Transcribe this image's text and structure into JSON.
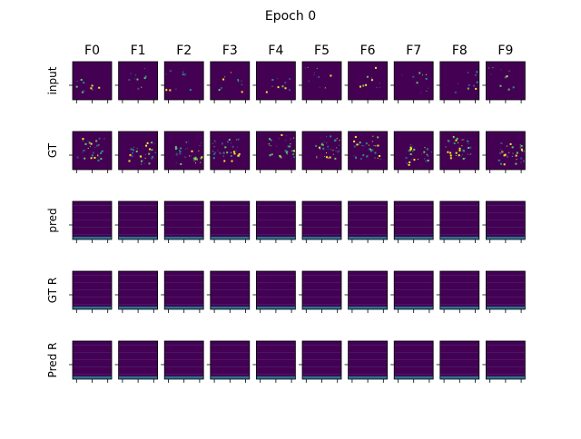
{
  "chart_data": {
    "type": "heatmap",
    "title": "Epoch 0",
    "columns": [
      "F0",
      "F1",
      "F2",
      "F3",
      "F4",
      "F5",
      "F6",
      "F7",
      "F8",
      "F9"
    ],
    "rows": [
      "input",
      "GT",
      "pred",
      "GT R",
      "Pred R"
    ],
    "colormap": "viridis",
    "background_color": "#440154",
    "highlight_colors": [
      "#3b528b",
      "#21918c",
      "#5ec962",
      "#fde725"
    ],
    "grid": false
  }
}
